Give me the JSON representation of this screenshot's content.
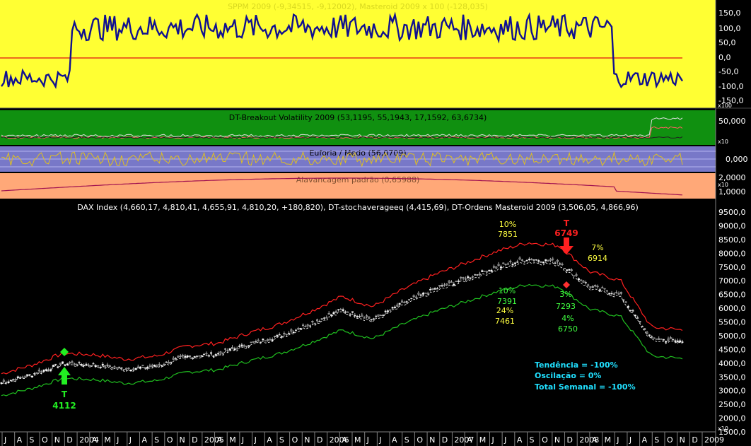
{
  "panels": {
    "sppm": {
      "title": "SPPM 2009 (-9,34515, -9,12002), Masteroid 2009 x 100 (-128,035)",
      "ticks": [
        "150,0",
        "100,0",
        "50,0",
        "0,0",
        "-50,0",
        "-100,0",
        "-150,0"
      ],
      "scale_note": "x100",
      "bg": "#ffff33",
      "line_color": "#101090",
      "signal_color": "#e01010"
    },
    "breakout": {
      "title": "DT-Breakout Volatility 2009 (53,1195, 55,1943, 17,1592, 63,6734)",
      "ticks": [
        "50,000"
      ],
      "scale_note": "x10",
      "bg": "#109010"
    },
    "euforia": {
      "title": "Euforia / Medo (56,0709)",
      "ticks": [
        "0,000"
      ],
      "bg": "#7878c8"
    },
    "alavancagem": {
      "title": "Alavancagem padrão (0,65988)",
      "ticks": [
        "2,0000",
        "1,0000"
      ],
      "scale_note": "x10",
      "bg": "#ffa878"
    },
    "main": {
      "title": "DAX Index (4,660,17, 4,810,41, 4,655,91, 4,810,20, +180,820), DT-stochaverageeq (4,415,69), DT-Ordens Masteroid 2009 (3,506,05, 4,866,96)",
      "ticks": [
        "9500,0",
        "9000,0",
        "8500,0",
        "8000,0",
        "7500,0",
        "7000,0",
        "6500,0",
        "6000,0",
        "5500,0",
        "5000,0",
        "4500,0",
        "4000,0",
        "3500,0",
        "3000,0",
        "2500,0",
        "2000,0",
        "1500,0"
      ],
      "scale_note": "x10"
    }
  },
  "annotations": {
    "buy_letter": "T",
    "buy_value": "4112",
    "sell_letter": "T",
    "sell_value": "6749",
    "a1_pct": "10%",
    "a1_val": "7851",
    "a2_pct": "7%",
    "a2_val": "6914",
    "a3_pct": "10%",
    "a3_val": "7391",
    "a4_pct": "24%",
    "a4_val": "7461",
    "a5_pct": "3%",
    "a5_val": "7293",
    "a6_pct": "4%",
    "a6_val": "6750"
  },
  "summary": {
    "tendencia": "Tendência = -100%",
    "oscilacao": "Oscilação = 0%",
    "total": "Total Semanal = -100%"
  },
  "time_axis": {
    "labels": [
      "J",
      "A",
      "S",
      "O",
      "N",
      "D",
      "2004",
      "A",
      "M",
      "J",
      "J",
      "A",
      "S",
      "O",
      "N",
      "D",
      "2005",
      "A",
      "M",
      "J",
      "J",
      "A",
      "S",
      "O",
      "N",
      "D",
      "2006",
      "A",
      "M",
      "J",
      "J",
      "A",
      "S",
      "O",
      "N",
      "D",
      "2007",
      "A",
      "M",
      "J",
      "J",
      "A",
      "S",
      "O",
      "N",
      "D",
      "2008",
      "A",
      "M",
      "J",
      "J",
      "A",
      "S",
      "O",
      "N",
      "D",
      "2009"
    ]
  },
  "chart_data": {
    "type": "line",
    "title": "DAX Index (4,660,17, 4,810,41, 4,655,91, 4,810,20, +180,820)",
    "x": [
      "2003-07",
      "2003-10",
      "2004-01",
      "2004-04",
      "2004-07",
      "2004-10",
      "2005-01",
      "2005-04",
      "2005-07",
      "2005-10",
      "2006-01",
      "2006-04",
      "2006-07",
      "2006-10",
      "2007-01",
      "2007-04",
      "2007-07",
      "2007-10",
      "2008-01",
      "2008-04",
      "2008-07",
      "2008-10",
      "2009-01"
    ],
    "series": [
      {
        "name": "DAX Index",
        "values": [
          3300,
          3600,
          4000,
          3950,
          3800,
          3900,
          4250,
          4350,
          4700,
          5000,
          5450,
          5950,
          5600,
          6200,
          6700,
          7100,
          7500,
          7800,
          7700,
          6800,
          6500,
          4900,
          4800
        ]
      }
    ],
    "ylim": [
      1500,
      9500
    ],
    "signals": [
      {
        "type": "buy",
        "date": "2003-12",
        "value": 4112
      },
      {
        "type": "sell",
        "date": "2008-01",
        "value": 6749
      }
    ]
  }
}
